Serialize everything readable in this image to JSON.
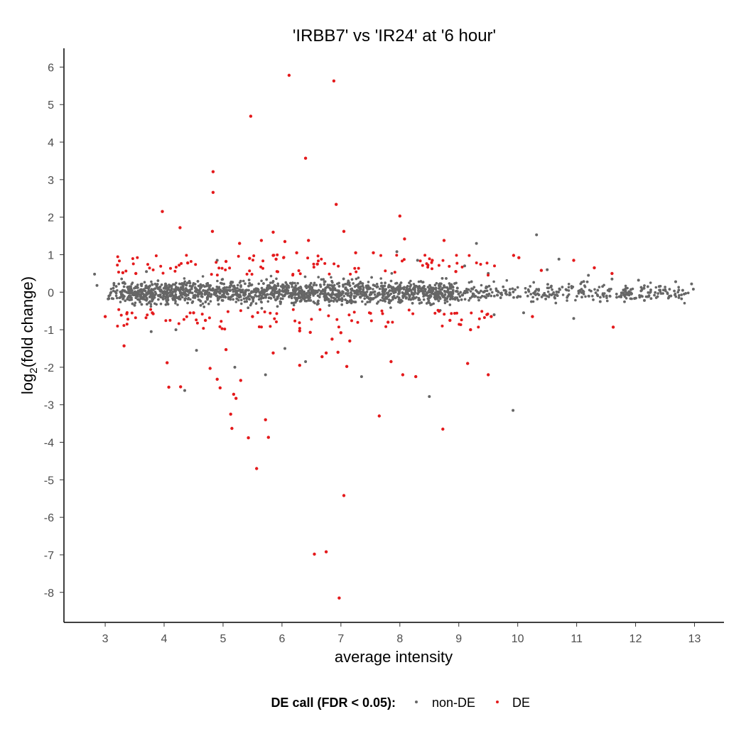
{
  "chart_data": {
    "type": "scatter",
    "title": "'IRBB7' vs 'IR24' at '6 hour'",
    "xlabel": "average intensity",
    "ylabel_main": "log",
    "ylabel_sub": "2",
    "ylabel_rest": "(fold change)",
    "xlim": [
      2.3,
      13.5
    ],
    "ylim": [
      -8.8,
      6.5
    ],
    "x_ticks": [
      3,
      4,
      5,
      6,
      7,
      8,
      9,
      10,
      11,
      12,
      13
    ],
    "y_ticks": [
      6,
      5,
      4,
      3,
      2,
      1,
      0,
      -1,
      -2,
      -3,
      -4,
      -5,
      -6,
      -7,
      -8
    ],
    "grid": false,
    "legend": {
      "title": "DE call (FDR < 0.05):",
      "position": "bottom",
      "items": [
        {
          "label": "non-DE",
          "color": "#666666"
        },
        {
          "label": "DE",
          "color": "#e41a1c"
        }
      ]
    },
    "colors": {
      "non_de": "#666666",
      "de": "#e41a1c"
    },
    "series": [
      {
        "name": "non-DE",
        "color": "#666666",
        "points": [
          [
            2.82,
            0.48
          ],
          [
            2.86,
            0.18
          ],
          [
            3.05,
            -0.18
          ],
          [
            3.3,
            0.25
          ],
          [
            3.5,
            -0.35
          ],
          [
            3.7,
            0.55
          ],
          [
            3.78,
            -1.05
          ],
          [
            4.2,
            -1.0
          ],
          [
            4.35,
            -2.62
          ],
          [
            4.55,
            -1.55
          ],
          [
            4.9,
            0.85
          ],
          [
            5.2,
            -2.0
          ],
          [
            5.72,
            -2.2
          ],
          [
            6.05,
            -1.5
          ],
          [
            6.4,
            -1.85
          ],
          [
            7.35,
            -2.25
          ],
          [
            7.95,
            1.08
          ],
          [
            8.3,
            0.85
          ],
          [
            8.5,
            -2.78
          ],
          [
            9.1,
            0.7
          ],
          [
            9.3,
            1.3
          ],
          [
            9.5,
            0.5
          ],
          [
            9.6,
            -0.6
          ],
          [
            9.92,
            -3.15
          ],
          [
            10.1,
            -0.55
          ],
          [
            10.32,
            1.53
          ],
          [
            10.5,
            0.6
          ],
          [
            10.7,
            0.88
          ],
          [
            10.95,
            -0.7
          ],
          [
            11.2,
            0.45
          ],
          [
            11.4,
            -0.25
          ],
          [
            11.6,
            0.35
          ],
          [
            11.8,
            -0.05
          ],
          [
            12.05,
            0.32
          ],
          [
            12.15,
            -0.22
          ],
          [
            12.4,
            0.15
          ],
          [
            12.6,
            -0.1
          ],
          [
            12.68,
            0.28
          ],
          [
            12.8,
            0.05
          ],
          [
            12.95,
            0.22
          ],
          [
            12.98,
            0.08
          ]
        ]
      },
      {
        "name": "DE",
        "color": "#e41a1c",
        "points": [
          [
            6.12,
            5.78
          ],
          [
            6.88,
            5.63
          ],
          [
            5.47,
            4.69
          ],
          [
            6.4,
            3.57
          ],
          [
            4.83,
            3.21
          ],
          [
            4.83,
            2.66
          ],
          [
            6.92,
            2.34
          ],
          [
            3.97,
            2.15
          ],
          [
            8.0,
            2.03
          ],
          [
            4.27,
            1.72
          ],
          [
            4.82,
            1.62
          ],
          [
            5.85,
            1.6
          ],
          [
            7.05,
            1.62
          ],
          [
            8.08,
            1.42
          ],
          [
            8.75,
            1.38
          ],
          [
            5.28,
            1.3
          ],
          [
            6.05,
            1.35
          ],
          [
            5.65,
            1.38
          ],
          [
            6.45,
            1.38
          ],
          [
            6.25,
            1.05
          ],
          [
            5.85,
            0.98
          ],
          [
            5.9,
            0.88
          ],
          [
            7.55,
            1.05
          ],
          [
            7.25,
            1.05
          ],
          [
            9.93,
            0.98
          ],
          [
            10.02,
            0.92
          ],
          [
            10.4,
            0.58
          ],
          [
            10.95,
            0.85
          ],
          [
            11.3,
            0.65
          ],
          [
            11.6,
            0.5
          ],
          [
            3.3,
            0.52
          ],
          [
            3.52,
            0.5
          ],
          [
            4.4,
            0.78
          ],
          [
            5.05,
            0.82
          ],
          [
            5.45,
            0.9
          ],
          [
            6.6,
            0.75
          ],
          [
            8.55,
            0.85
          ],
          [
            8.95,
            0.55
          ],
          [
            6.48,
            -1.07
          ],
          [
            6.85,
            -1.25
          ],
          [
            7.0,
            -1.08
          ],
          [
            7.15,
            -1.3
          ],
          [
            6.3,
            -1.03
          ],
          [
            6.75,
            -1.62
          ],
          [
            5.85,
            -1.62
          ],
          [
            5.05,
            -1.53
          ],
          [
            4.78,
            -2.03
          ],
          [
            4.05,
            -1.88
          ],
          [
            4.08,
            -2.53
          ],
          [
            4.28,
            -2.52
          ],
          [
            4.9,
            -2.32
          ],
          [
            4.95,
            -2.55
          ],
          [
            5.18,
            -2.72
          ],
          [
            5.22,
            -2.83
          ],
          [
            5.13,
            -3.25
          ],
          [
            5.15,
            -3.63
          ],
          [
            5.3,
            -2.35
          ],
          [
            5.43,
            -3.88
          ],
          [
            5.72,
            -3.4
          ],
          [
            5.77,
            -3.87
          ],
          [
            5.57,
            -4.7
          ],
          [
            6.3,
            -1.95
          ],
          [
            6.68,
            -1.72
          ],
          [
            6.95,
            -1.6
          ],
          [
            7.1,
            -1.98
          ],
          [
            7.05,
            -5.42
          ],
          [
            6.55,
            -6.98
          ],
          [
            6.75,
            -6.92
          ],
          [
            6.97,
            -8.15
          ],
          [
            7.65,
            -3.3
          ],
          [
            7.85,
            -1.85
          ],
          [
            8.05,
            -2.2
          ],
          [
            8.27,
            -2.25
          ],
          [
            8.73,
            -3.65
          ],
          [
            9.15,
            -1.9
          ],
          [
            9.5,
            -2.2
          ],
          [
            9.2,
            -1.0
          ],
          [
            9.55,
            -0.65
          ],
          [
            10.25,
            -0.65
          ],
          [
            11.62,
            -0.93
          ],
          [
            3.32,
            -1.43
          ],
          [
            3.0,
            -0.65
          ],
          [
            3.8,
            -0.55
          ],
          [
            4.5,
            -0.55
          ],
          [
            4.7,
            -0.75
          ],
          [
            5.5,
            -0.65
          ],
          [
            7.8,
            -0.8
          ],
          [
            8.85,
            -0.75
          ]
        ]
      }
    ]
  }
}
